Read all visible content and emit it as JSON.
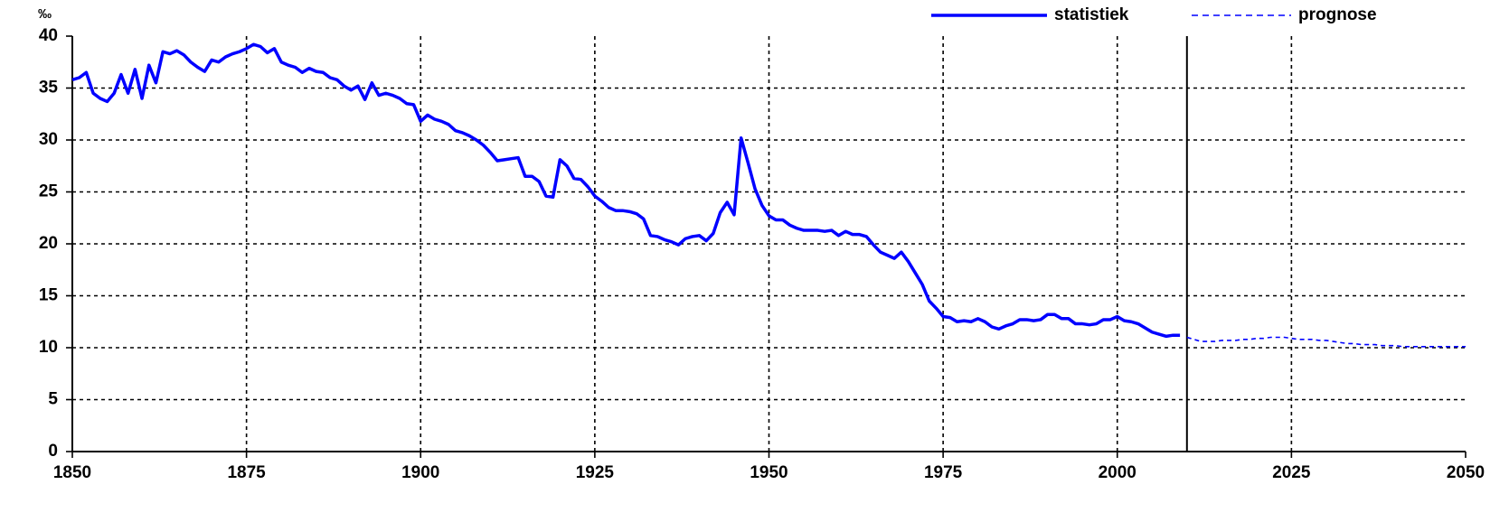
{
  "chart_data": {
    "type": "line",
    "ylabel": "‰",
    "x": [
      1850,
      1851,
      1852,
      1853,
      1854,
      1855,
      1856,
      1857,
      1858,
      1859,
      1860,
      1861,
      1862,
      1863,
      1864,
      1865,
      1866,
      1867,
      1868,
      1869,
      1870,
      1871,
      1872,
      1873,
      1874,
      1875,
      1876,
      1877,
      1878,
      1879,
      1880,
      1881,
      1882,
      1883,
      1884,
      1885,
      1886,
      1887,
      1888,
      1889,
      1890,
      1891,
      1892,
      1893,
      1894,
      1895,
      1896,
      1897,
      1898,
      1899,
      1900,
      1901,
      1902,
      1903,
      1904,
      1905,
      1906,
      1907,
      1908,
      1909,
      1910,
      1911,
      1912,
      1913,
      1914,
      1915,
      1916,
      1917,
      1918,
      1919,
      1920,
      1921,
      1922,
      1923,
      1924,
      1925,
      1926,
      1927,
      1928,
      1929,
      1930,
      1931,
      1932,
      1933,
      1934,
      1935,
      1936,
      1937,
      1938,
      1939,
      1940,
      1941,
      1942,
      1943,
      1944,
      1945,
      1946,
      1947,
      1948,
      1949,
      1950,
      1951,
      1952,
      1953,
      1954,
      1955,
      1956,
      1957,
      1958,
      1959,
      1960,
      1961,
      1962,
      1963,
      1964,
      1965,
      1966,
      1967,
      1968,
      1969,
      1970,
      1971,
      1972,
      1973,
      1974,
      1975,
      1976,
      1977,
      1978,
      1979,
      1980,
      1981,
      1982,
      1983,
      1984,
      1985,
      1986,
      1987,
      1988,
      1989,
      1990,
      1991,
      1992,
      1993,
      1994,
      1995,
      1996,
      1997,
      1998,
      1999,
      2000,
      2001,
      2002,
      2003,
      2004,
      2005,
      2006,
      2007,
      2008,
      2009,
      2010,
      2011,
      2012,
      2013,
      2014,
      2015,
      2016,
      2017,
      2018,
      2019,
      2020,
      2021,
      2022,
      2023,
      2024,
      2025,
      2026,
      2027,
      2028,
      2029,
      2030,
      2031,
      2032,
      2033,
      2034,
      2035,
      2036,
      2037,
      2038,
      2039,
      2040,
      2041,
      2042,
      2043,
      2044,
      2045,
      2046,
      2047,
      2048,
      2049,
      2050
    ],
    "series": [
      {
        "name": "statistiek",
        "color": "#0000ff",
        "style": "solid",
        "values": [
          35.8,
          36,
          36.5,
          34.5,
          34,
          33.7,
          34.5,
          36.3,
          34.5,
          36.8,
          34,
          37.2,
          35.5,
          38.5,
          38.3,
          38.6,
          38.2,
          37.5,
          37,
          36.6,
          37.7,
          37.5,
          38,
          38.3,
          38.5,
          38.8,
          39.2,
          39,
          38.4,
          38.8,
          37.5,
          37.2,
          37,
          36.5,
          36.9,
          36.6,
          36.5,
          36,
          35.8,
          35.2,
          34.8,
          35.2,
          33.9,
          35.5,
          34.3,
          34.5,
          34.3,
          34,
          33.5,
          33.4,
          31.8,
          32.4,
          32,
          31.8,
          31.5,
          30.9,
          30.7,
          30.4,
          30,
          29.5,
          28.8,
          28,
          28.1,
          28.2,
          28.3,
          26.5,
          26.5,
          26,
          24.6,
          24.5,
          28.1,
          27.5,
          26.3,
          26.2,
          25.5,
          24.6,
          24.1,
          23.5,
          23.2,
          23.2,
          23.1,
          22.9,
          22.4,
          20.8,
          20.7,
          20.4,
          20.2,
          19.9,
          20.5,
          20.7,
          20.8,
          20.3,
          21,
          23,
          24,
          22.8,
          30.2,
          27.8,
          25.3,
          23.7,
          22.7,
          22.3,
          22.3,
          21.8,
          21.5,
          21.3,
          21.3,
          21.3,
          21.2,
          21.3,
          20.8,
          21.2,
          20.9,
          20.9,
          20.7,
          19.9,
          19.2,
          18.9,
          18.6,
          19.2,
          18.3,
          17.2,
          16.1,
          14.5,
          13.8,
          13,
          12.9,
          12.5,
          12.6,
          12.5,
          12.8,
          12.5,
          12,
          11.8,
          12.1,
          12.3,
          12.7,
          12.7,
          12.6,
          12.7,
          13.2,
          13.2,
          12.8,
          12.8,
          12.3,
          12.3,
          12.2,
          12.3,
          12.7,
          12.7,
          13,
          12.6,
          12.5,
          12.3,
          11.9,
          11.5,
          11.3,
          11.1,
          11.2,
          11.2,
          null,
          null,
          null,
          null,
          null,
          null,
          null,
          null,
          null,
          null,
          null,
          null,
          null,
          null,
          null,
          null,
          null,
          null,
          null,
          null,
          null,
          null,
          null,
          null,
          null,
          null,
          null,
          null,
          null,
          null,
          null,
          null,
          null,
          null,
          null,
          null,
          null,
          null,
          null,
          null,
          null
        ]
      },
      {
        "name": "prognose",
        "color": "#0000ff",
        "style": "dashed",
        "values": [
          null,
          null,
          null,
          null,
          null,
          null,
          null,
          null,
          null,
          null,
          null,
          null,
          null,
          null,
          null,
          null,
          null,
          null,
          null,
          null,
          null,
          null,
          null,
          null,
          null,
          null,
          null,
          null,
          null,
          null,
          null,
          null,
          null,
          null,
          null,
          null,
          null,
          null,
          null,
          null,
          null,
          null,
          null,
          null,
          null,
          null,
          null,
          null,
          null,
          null,
          null,
          null,
          null,
          null,
          null,
          null,
          null,
          null,
          null,
          null,
          null,
          null,
          null,
          null,
          null,
          null,
          null,
          null,
          null,
          null,
          null,
          null,
          null,
          null,
          null,
          null,
          null,
          null,
          null,
          null,
          null,
          null,
          null,
          null,
          null,
          null,
          null,
          null,
          null,
          null,
          null,
          null,
          null,
          null,
          null,
          null,
          null,
          null,
          null,
          null,
          null,
          null,
          null,
          null,
          null,
          null,
          null,
          null,
          null,
          null,
          null,
          null,
          null,
          null,
          null,
          null,
          null,
          null,
          null,
          null,
          null,
          null,
          null,
          null,
          null,
          null,
          null,
          null,
          null,
          null,
          null,
          null,
          null,
          null,
          null,
          null,
          null,
          null,
          null,
          null,
          null,
          null,
          null,
          null,
          null,
          null,
          null,
          null,
          null,
          null,
          null,
          null,
          null,
          null,
          null,
          null,
          null,
          null,
          null,
          null,
          11,
          10.8,
          10.6,
          10.6,
          10.6,
          10.7,
          10.7,
          10.7,
          10.8,
          10.8,
          10.9,
          10.9,
          11,
          11,
          11,
          10.9,
          10.8,
          10.8,
          10.8,
          10.7,
          10.7,
          10.6,
          10.5,
          10.4,
          10.4,
          10.3,
          10.3,
          10.3,
          10.2,
          10.2,
          10.2,
          10.1,
          10.1,
          10.1,
          10.1,
          10.1,
          10.1,
          10.1,
          10.1,
          10.1,
          10.1
        ]
      }
    ],
    "xlim": [
      1850,
      2050
    ],
    "xticks": [
      1850,
      1875,
      1900,
      1925,
      1950,
      1975,
      2000,
      2025,
      2050
    ],
    "ylim": [
      0,
      40
    ],
    "yticks": [
      0,
      5,
      10,
      15,
      20,
      25,
      30,
      35,
      40
    ],
    "vlines": [
      2010
    ],
    "grid": true,
    "legend": "top-right"
  }
}
